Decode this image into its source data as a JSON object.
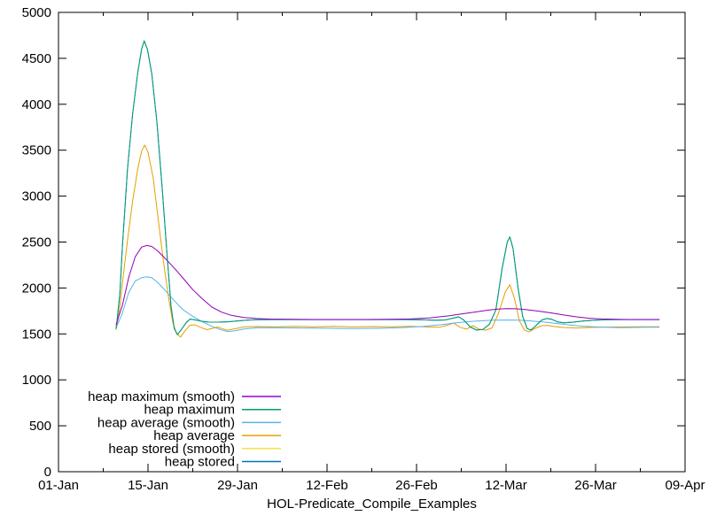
{
  "chart_data": {
    "type": "line",
    "title": "",
    "xlabel": "HOL-Predicate_Compile_Examples",
    "ylabel": "",
    "background": "#ffffff",
    "border_color": "#000000",
    "grid": false,
    "x_axis": {
      "tick_labels": [
        "01-Jan",
        "15-Jan",
        "29-Jan",
        "12-Feb",
        "26-Feb",
        "12-Mar",
        "26-Mar",
        "09-Apr"
      ],
      "tick_days": [
        0,
        14,
        28,
        42,
        56,
        70,
        84,
        98
      ],
      "minor_tick_days": [
        7,
        21,
        35,
        49,
        63,
        77,
        91
      ],
      "range_days": [
        0,
        98
      ]
    },
    "y_axis": {
      "tick_labels": [
        "0",
        "500",
        "1000",
        "1500",
        "2000",
        "2500",
        "3000",
        "3500",
        "4000",
        "4500",
        "5000"
      ],
      "ticks": [
        0,
        500,
        1000,
        1500,
        2000,
        2500,
        3000,
        3500,
        4000,
        4500,
        5000
      ],
      "range": [
        0,
        5000
      ]
    },
    "legend_position": "bottom-left",
    "draw_order": [
      5,
      4,
      3,
      2,
      1,
      0
    ],
    "series": [
      {
        "name": "heap maximum (smooth)",
        "color": "#9400d3",
        "points": [
          [
            9,
            1600
          ],
          [
            10,
            1810
          ],
          [
            11,
            2120
          ],
          [
            12,
            2340
          ],
          [
            13,
            2445
          ],
          [
            13.8,
            2462
          ],
          [
            14.6,
            2452
          ],
          [
            15.5,
            2405
          ],
          [
            16.5,
            2335
          ],
          [
            17.5,
            2262
          ],
          [
            18.5,
            2185
          ],
          [
            19.5,
            2105
          ],
          [
            21,
            1982
          ],
          [
            22.5,
            1882
          ],
          [
            24,
            1792
          ],
          [
            25.5,
            1737
          ],
          [
            27,
            1702
          ],
          [
            29,
            1679
          ],
          [
            31,
            1668
          ],
          [
            33,
            1662
          ],
          [
            36,
            1659
          ],
          [
            40,
            1657
          ],
          [
            44,
            1657
          ],
          [
            48,
            1657
          ],
          [
            52,
            1659
          ],
          [
            55,
            1663
          ],
          [
            58,
            1674
          ],
          [
            61,
            1697
          ],
          [
            63,
            1717
          ],
          [
            65,
            1737
          ],
          [
            67,
            1757
          ],
          [
            68.5,
            1769
          ],
          [
            70,
            1776
          ],
          [
            71.5,
            1774
          ],
          [
            73,
            1765
          ],
          [
            75,
            1749
          ],
          [
            77,
            1729
          ],
          [
            79,
            1706
          ],
          [
            81,
            1686
          ],
          [
            83,
            1671
          ],
          [
            85,
            1663
          ],
          [
            87,
            1659
          ],
          [
            89,
            1657
          ],
          [
            91,
            1657
          ],
          [
            94,
            1657
          ]
        ]
      },
      {
        "name": "heap maximum",
        "color": "#009e73",
        "points": [
          [
            9,
            1555
          ],
          [
            9.15,
            1635
          ],
          [
            9.6,
            1950
          ],
          [
            10,
            2450
          ],
          [
            10.8,
            3300
          ],
          [
            11.6,
            3900
          ],
          [
            12.4,
            4350
          ],
          [
            13,
            4600
          ],
          [
            13.4,
            4690
          ],
          [
            13.9,
            4600
          ],
          [
            14.6,
            4330
          ],
          [
            15.4,
            3800
          ],
          [
            16.2,
            3100
          ],
          [
            17,
            2350
          ],
          [
            17.6,
            1800
          ],
          [
            18.1,
            1560
          ],
          [
            18.6,
            1492
          ],
          [
            19.2,
            1545
          ],
          [
            20,
            1625
          ],
          [
            20.6,
            1662
          ],
          [
            21.4,
            1652
          ],
          [
            22.4,
            1638
          ],
          [
            23.5,
            1628
          ],
          [
            25,
            1628
          ],
          [
            26.5,
            1632
          ],
          [
            28,
            1642
          ],
          [
            29.5,
            1650
          ],
          [
            31,
            1655
          ],
          [
            34,
            1656
          ],
          [
            38,
            1656
          ],
          [
            42,
            1656
          ],
          [
            46,
            1656
          ],
          [
            50,
            1656
          ],
          [
            54,
            1656
          ],
          [
            57,
            1653
          ],
          [
            59,
            1648
          ],
          [
            60.5,
            1652
          ],
          [
            61.8,
            1672
          ],
          [
            62.6,
            1686
          ],
          [
            63.4,
            1650
          ],
          [
            64.4,
            1575
          ],
          [
            65.4,
            1542
          ],
          [
            66.4,
            1548
          ],
          [
            67.4,
            1605
          ],
          [
            68.4,
            1760
          ],
          [
            69.4,
            2220
          ],
          [
            70.2,
            2500
          ],
          [
            70.6,
            2556
          ],
          [
            71.1,
            2430
          ],
          [
            71.9,
            1990
          ],
          [
            72.6,
            1690
          ],
          [
            73.3,
            1558
          ],
          [
            73.9,
            1542
          ],
          [
            74.6,
            1585
          ],
          [
            75.6,
            1652
          ],
          [
            76.4,
            1668
          ],
          [
            77.2,
            1658
          ],
          [
            78,
            1632
          ],
          [
            79,
            1620
          ],
          [
            80.5,
            1628
          ],
          [
            82,
            1640
          ],
          [
            84,
            1650
          ],
          [
            86,
            1654
          ],
          [
            88,
            1656
          ],
          [
            91,
            1656
          ],
          [
            94,
            1656
          ]
        ]
      },
      {
        "name": "heap average (smooth)",
        "color": "#56b4e9",
        "points": [
          [
            9,
            1565
          ],
          [
            10,
            1725
          ],
          [
            11,
            1955
          ],
          [
            12,
            2075
          ],
          [
            13,
            2112
          ],
          [
            13.8,
            2122
          ],
          [
            14.6,
            2112
          ],
          [
            15.5,
            2062
          ],
          [
            16.5,
            1988
          ],
          [
            17.5,
            1908
          ],
          [
            18.5,
            1832
          ],
          [
            19.5,
            1762
          ],
          [
            21,
            1692
          ],
          [
            22.5,
            1632
          ],
          [
            24,
            1582
          ],
          [
            25.5,
            1542
          ],
          [
            26.5,
            1526
          ],
          [
            27.5,
            1533
          ],
          [
            29,
            1553
          ],
          [
            31,
            1566
          ],
          [
            34,
            1568
          ],
          [
            38,
            1565
          ],
          [
            42,
            1562
          ],
          [
            46,
            1558
          ],
          [
            50,
            1561
          ],
          [
            54,
            1569
          ],
          [
            57,
            1581
          ],
          [
            60,
            1601
          ],
          [
            62,
            1619
          ],
          [
            64,
            1633
          ],
          [
            66,
            1643
          ],
          [
            68,
            1649
          ],
          [
            70,
            1651
          ],
          [
            72,
            1649
          ],
          [
            74,
            1641
          ],
          [
            76,
            1629
          ],
          [
            78,
            1613
          ],
          [
            80,
            1597
          ],
          [
            82,
            1584
          ],
          [
            84,
            1576
          ],
          [
            86,
            1571
          ],
          [
            88,
            1568
          ],
          [
            90,
            1570
          ],
          [
            92,
            1572
          ],
          [
            94,
            1572
          ]
        ]
      },
      {
        "name": "heap average",
        "color": "#e69f00",
        "points": [
          [
            9,
            1545
          ],
          [
            9.15,
            1585
          ],
          [
            9.6,
            1800
          ],
          [
            10,
            2050
          ],
          [
            10.8,
            2520
          ],
          [
            11.6,
            2950
          ],
          [
            12.4,
            3300
          ],
          [
            13,
            3490
          ],
          [
            13.5,
            3556
          ],
          [
            14,
            3480
          ],
          [
            14.8,
            3200
          ],
          [
            15.6,
            2750
          ],
          [
            16.4,
            2300
          ],
          [
            17.2,
            1900
          ],
          [
            17.9,
            1620
          ],
          [
            18.5,
            1500
          ],
          [
            19.1,
            1466
          ],
          [
            19.7,
            1525
          ],
          [
            20.5,
            1592
          ],
          [
            21.3,
            1600
          ],
          [
            22.2,
            1572
          ],
          [
            23.2,
            1546
          ],
          [
            24.2,
            1562
          ],
          [
            24.9,
            1576
          ],
          [
            25.6,
            1558
          ],
          [
            26.4,
            1540
          ],
          [
            27.6,
            1556
          ],
          [
            29,
            1576
          ],
          [
            31,
            1581
          ],
          [
            34,
            1578
          ],
          [
            37,
            1582
          ],
          [
            40,
            1578
          ],
          [
            43,
            1582
          ],
          [
            46,
            1576
          ],
          [
            49,
            1580
          ],
          [
            52,
            1578
          ],
          [
            55,
            1582
          ],
          [
            57.5,
            1576
          ],
          [
            59.5,
            1572
          ],
          [
            60.8,
            1594
          ],
          [
            61.8,
            1618
          ],
          [
            62.8,
            1572
          ],
          [
            63.8,
            1552
          ],
          [
            64.8,
            1590
          ],
          [
            65.8,
            1552
          ],
          [
            66.8,
            1540
          ],
          [
            67.8,
            1565
          ],
          [
            68.8,
            1720
          ],
          [
            69.9,
            1960
          ],
          [
            70.6,
            2036
          ],
          [
            71.3,
            1890
          ],
          [
            72.1,
            1640
          ],
          [
            72.9,
            1540
          ],
          [
            73.6,
            1522
          ],
          [
            74.6,
            1562
          ],
          [
            75.6,
            1590
          ],
          [
            76.6,
            1592
          ],
          [
            77.6,
            1580
          ],
          [
            79,
            1570
          ],
          [
            81,
            1565
          ],
          [
            83,
            1570
          ],
          [
            85,
            1572
          ],
          [
            88,
            1576
          ],
          [
            91,
            1577
          ],
          [
            94,
            1578
          ]
        ]
      },
      {
        "name": "heap stored (smooth)",
        "color": "#f0e442",
        "points_same_as": 0,
        "note": "coincides with heap maximum (smooth); hidden beneath it"
      },
      {
        "name": "heap stored",
        "color": "#0072b2",
        "points_same_as": 1,
        "note": "coincides with heap maximum; hidden beneath it"
      }
    ]
  }
}
